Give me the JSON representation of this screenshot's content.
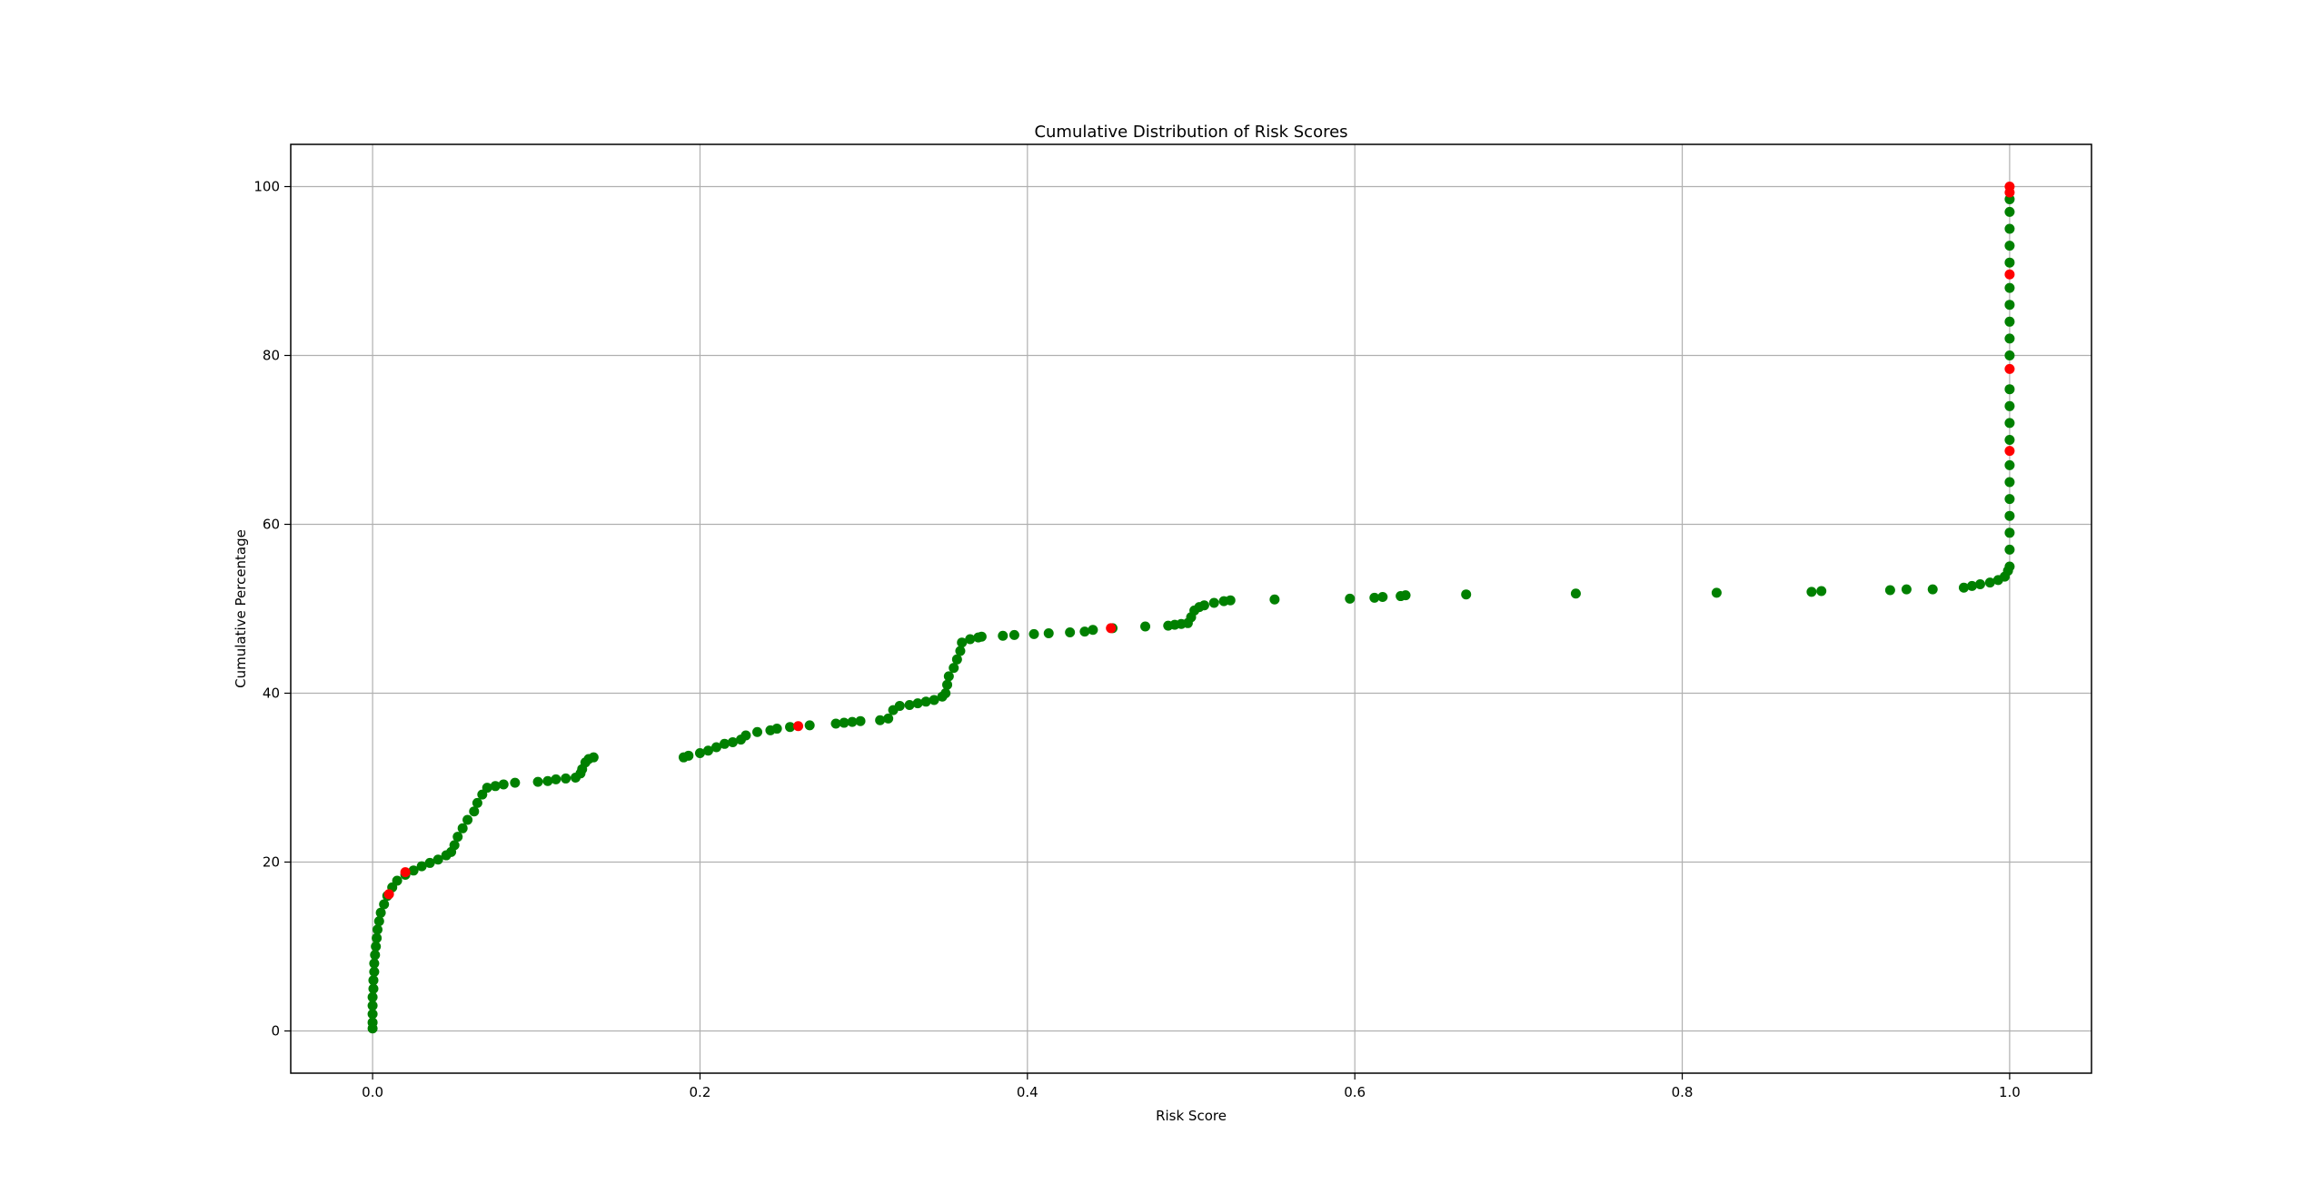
{
  "chart_data": {
    "type": "scatter",
    "title": "Cumulative Distribution of Risk Scores",
    "xlabel": "Risk Score",
    "ylabel": "Cumulative Percentage",
    "xlim": [
      -0.05,
      1.05
    ],
    "ylim": [
      -5,
      105
    ],
    "xticks": [
      0.0,
      0.2,
      0.4,
      0.6,
      0.8,
      1.0
    ],
    "xtick_labels": [
      "0.0",
      "0.2",
      "0.4",
      "0.6",
      "0.8",
      "1.0"
    ],
    "yticks": [
      0,
      20,
      40,
      60,
      80,
      100
    ],
    "ytick_labels": [
      "0",
      "20",
      "40",
      "60",
      "80",
      "100"
    ],
    "grid": true,
    "colors": {
      "green": "#008000",
      "red": "#ff0000"
    },
    "series": [
      {
        "color": "green",
        "points": [
          [
            0.0,
            0.3
          ],
          [
            0.0,
            1.0
          ],
          [
            0.0,
            2.0
          ],
          [
            0.0,
            3.0
          ],
          [
            0.0,
            4.0
          ],
          [
            0.0005,
            5.0
          ],
          [
            0.0005,
            6.0
          ],
          [
            0.001,
            7.0
          ],
          [
            0.001,
            8.0
          ],
          [
            0.0015,
            9.0
          ],
          [
            0.002,
            10.0
          ],
          [
            0.0025,
            11.0
          ],
          [
            0.003,
            12.0
          ],
          [
            0.004,
            13.0
          ],
          [
            0.005,
            14.0
          ],
          [
            0.007,
            15.0
          ],
          [
            0.009,
            16.0
          ],
          [
            0.012,
            17.0
          ],
          [
            0.015,
            17.8
          ],
          [
            0.02,
            18.5
          ],
          [
            0.025,
            19.0
          ],
          [
            0.03,
            19.5
          ],
          [
            0.035,
            19.9
          ],
          [
            0.04,
            20.3
          ],
          [
            0.045,
            20.8
          ],
          [
            0.048,
            21.2
          ],
          [
            0.05,
            22.0
          ],
          [
            0.052,
            23.0
          ],
          [
            0.055,
            24.0
          ],
          [
            0.058,
            25.0
          ],
          [
            0.062,
            26.0
          ],
          [
            0.064,
            27.0
          ],
          [
            0.067,
            28.0
          ],
          [
            0.07,
            28.8
          ],
          [
            0.075,
            29.0
          ],
          [
            0.08,
            29.2
          ],
          [
            0.087,
            29.4
          ],
          [
            0.101,
            29.5
          ],
          [
            0.107,
            29.6
          ],
          [
            0.112,
            29.8
          ],
          [
            0.118,
            29.9
          ],
          [
            0.124,
            30.0
          ],
          [
            0.127,
            30.5
          ],
          [
            0.128,
            31.0
          ],
          [
            0.13,
            31.8
          ],
          [
            0.132,
            32.2
          ],
          [
            0.135,
            32.4
          ],
          [
            0.19,
            32.4
          ],
          [
            0.193,
            32.6
          ],
          [
            0.2,
            32.9
          ],
          [
            0.205,
            33.2
          ],
          [
            0.21,
            33.6
          ],
          [
            0.215,
            34.0
          ],
          [
            0.22,
            34.2
          ],
          [
            0.225,
            34.5
          ],
          [
            0.228,
            35.0
          ],
          [
            0.235,
            35.4
          ],
          [
            0.243,
            35.6
          ],
          [
            0.247,
            35.8
          ],
          [
            0.255,
            36.0
          ],
          [
            0.267,
            36.2
          ],
          [
            0.283,
            36.4
          ],
          [
            0.288,
            36.5
          ],
          [
            0.293,
            36.6
          ],
          [
            0.298,
            36.7
          ],
          [
            0.31,
            36.8
          ],
          [
            0.315,
            37.0
          ],
          [
            0.318,
            38.0
          ],
          [
            0.322,
            38.5
          ],
          [
            0.328,
            38.6
          ],
          [
            0.333,
            38.8
          ],
          [
            0.338,
            39.0
          ],
          [
            0.343,
            39.2
          ],
          [
            0.348,
            39.6
          ],
          [
            0.35,
            40.0
          ],
          [
            0.351,
            41.0
          ],
          [
            0.352,
            42.0
          ],
          [
            0.355,
            43.0
          ],
          [
            0.357,
            44.0
          ],
          [
            0.359,
            45.0
          ],
          [
            0.36,
            46.0
          ],
          [
            0.365,
            46.4
          ],
          [
            0.37,
            46.6
          ],
          [
            0.372,
            46.7
          ],
          [
            0.385,
            46.8
          ],
          [
            0.392,
            46.9
          ],
          [
            0.404,
            47.0
          ],
          [
            0.413,
            47.1
          ],
          [
            0.426,
            47.2
          ],
          [
            0.435,
            47.3
          ],
          [
            0.44,
            47.5
          ],
          [
            0.452,
            47.7
          ],
          [
            0.472,
            47.9
          ],
          [
            0.486,
            48.0
          ],
          [
            0.49,
            48.1
          ],
          [
            0.494,
            48.2
          ],
          [
            0.498,
            48.3
          ],
          [
            0.5,
            49.0
          ],
          [
            0.502,
            49.8
          ],
          [
            0.505,
            50.2
          ],
          [
            0.508,
            50.4
          ],
          [
            0.514,
            50.7
          ],
          [
            0.52,
            50.9
          ],
          [
            0.524,
            51.0
          ],
          [
            0.551,
            51.1
          ],
          [
            0.597,
            51.2
          ],
          [
            0.612,
            51.3
          ],
          [
            0.617,
            51.4
          ],
          [
            0.628,
            51.5
          ],
          [
            0.631,
            51.6
          ],
          [
            0.668,
            51.7
          ],
          [
            0.735,
            51.8
          ],
          [
            0.821,
            51.9
          ],
          [
            0.879,
            52.0
          ],
          [
            0.885,
            52.1
          ],
          [
            0.927,
            52.2
          ],
          [
            0.937,
            52.3
          ],
          [
            0.953,
            52.3
          ],
          [
            0.972,
            52.5
          ],
          [
            0.977,
            52.7
          ],
          [
            0.982,
            52.9
          ],
          [
            0.988,
            53.1
          ],
          [
            0.993,
            53.4
          ],
          [
            0.997,
            53.8
          ],
          [
            0.999,
            54.5
          ],
          [
            1.0,
            55.0
          ],
          [
            1.0,
            57.0
          ],
          [
            1.0,
            59.0
          ],
          [
            1.0,
            61.0
          ],
          [
            1.0,
            63.0
          ],
          [
            1.0,
            65.0
          ],
          [
            1.0,
            67.0
          ],
          [
            1.0,
            70.0
          ],
          [
            1.0,
            72.0
          ],
          [
            1.0,
            74.0
          ],
          [
            1.0,
            76.0
          ],
          [
            1.0,
            80.0
          ],
          [
            1.0,
            82.0
          ],
          [
            1.0,
            84.0
          ],
          [
            1.0,
            86.0
          ],
          [
            1.0,
            88.0
          ],
          [
            1.0,
            91.0
          ],
          [
            1.0,
            93.0
          ],
          [
            1.0,
            95.0
          ],
          [
            1.0,
            97.0
          ],
          [
            1.0,
            98.5
          ]
        ]
      },
      {
        "color": "red",
        "points": [
          [
            0.01,
            16.2
          ],
          [
            0.02,
            18.8
          ],
          [
            0.26,
            36.1
          ],
          [
            0.451,
            47.7
          ],
          [
            1.0,
            68.7
          ],
          [
            1.0,
            78.4
          ],
          [
            1.0,
            89.6
          ],
          [
            1.0,
            99.3
          ],
          [
            1.0,
            100.0
          ]
        ]
      }
    ]
  }
}
